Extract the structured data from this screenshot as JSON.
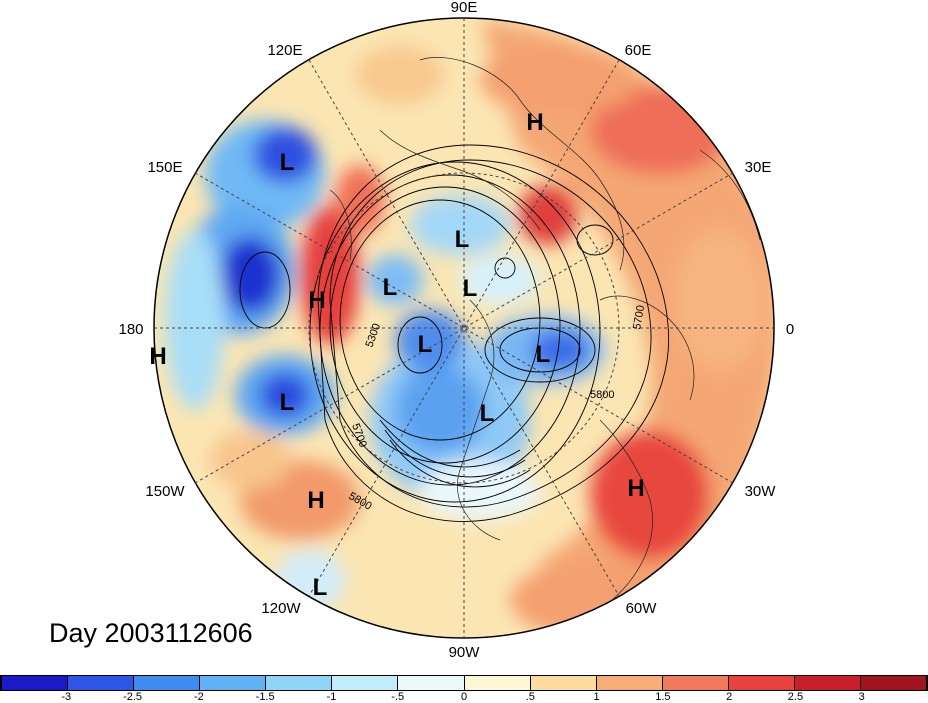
{
  "title": "Day 2003112606",
  "longitude_labels": {
    "top": "90E",
    "upper_left": "120E",
    "upper_right": "60E",
    "left_upper": "150E",
    "right_upper": "30E",
    "left": "180",
    "right": "0",
    "left_lower": "150W",
    "right_lower": "30W",
    "lower_left": "120W",
    "lower_right": "60W",
    "bottom": "90W"
  },
  "pressure_centers": [
    {
      "label": "L"
    },
    {
      "label": "L"
    },
    {
      "label": "L"
    },
    {
      "label": "L"
    },
    {
      "label": "L"
    },
    {
      "label": "L"
    },
    {
      "label": "L"
    },
    {
      "label": "L"
    },
    {
      "label": "L"
    },
    {
      "label": "H"
    },
    {
      "label": "H"
    },
    {
      "label": "H"
    },
    {
      "label": "H"
    },
    {
      "label": "H"
    }
  ],
  "contour_labels": [
    "5300",
    "5700",
    "5700",
    "5800",
    "5800"
  ],
  "colorbar": {
    "ticks": [
      "-3",
      "-2.5",
      "-2",
      "-1.5",
      "-1",
      "-.5",
      "0",
      ".5",
      "1",
      "1.5",
      "2",
      "2.5",
      "3"
    ],
    "colors": [
      "#1a1ac8",
      "#2d55e6",
      "#3f8cf0",
      "#5fb2f5",
      "#8dd6f8",
      "#c1ecfb",
      "#eafaf8",
      "#fdf7d4",
      "#fbdc9c",
      "#f7ad76",
      "#f27a5c",
      "#e8413e",
      "#c91f2a",
      "#a0141e"
    ]
  }
}
